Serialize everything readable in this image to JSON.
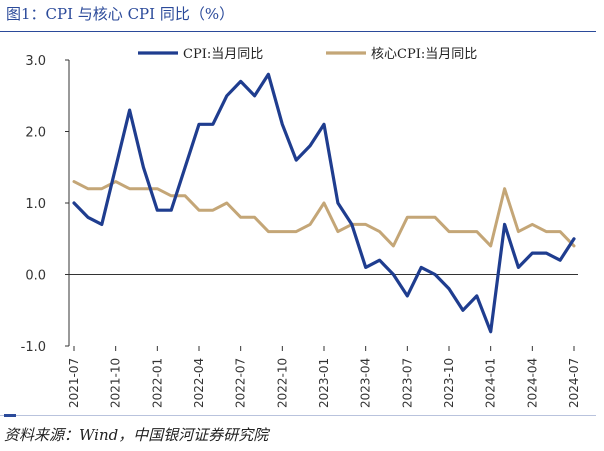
{
  "figure": {
    "title": "图1：CPI 与核心 CPI 同比（%）",
    "source": "资料来源：Wind，中国银河证券研究院"
  },
  "chart_data": {
    "type": "line",
    "title": "CPI 与核心 CPI 同比（%）",
    "xlabel": "",
    "ylabel": "",
    "ylim": [
      -1.0,
      3.0
    ],
    "yticks": [
      "3.0",
      "2.0",
      "1.0",
      "0.0",
      "-1.0"
    ],
    "ytick_values": [
      3.0,
      2.0,
      1.0,
      0.0,
      -1.0
    ],
    "xtick_labels": [
      "2021-07",
      "2021-10",
      "2022-01",
      "2022-04",
      "2022-07",
      "2022-10",
      "2023-01",
      "2023-04",
      "2023-07",
      "2023-10",
      "2024-01",
      "2024-04",
      "2024-07"
    ],
    "xtick_indices": [
      0,
      3,
      6,
      9,
      12,
      15,
      18,
      21,
      24,
      27,
      30,
      33,
      36
    ],
    "x": [
      "2021-07",
      "2021-08",
      "2021-09",
      "2021-10",
      "2021-11",
      "2021-12",
      "2022-01",
      "2022-02",
      "2022-03",
      "2022-04",
      "2022-05",
      "2022-06",
      "2022-07",
      "2022-08",
      "2022-09",
      "2022-10",
      "2022-11",
      "2022-12",
      "2023-01",
      "2023-02",
      "2023-03",
      "2023-04",
      "2023-05",
      "2023-06",
      "2023-07",
      "2023-08",
      "2023-09",
      "2023-10",
      "2023-11",
      "2023-12",
      "2024-01",
      "2024-02",
      "2024-03",
      "2024-04",
      "2024-05",
      "2024-06",
      "2024-07"
    ],
    "series": [
      {
        "name": "CPI:当月同比",
        "color": "#1f3d8f",
        "values": [
          1.0,
          0.8,
          0.7,
          1.5,
          2.3,
          1.5,
          0.9,
          0.9,
          1.5,
          2.1,
          2.1,
          2.5,
          2.7,
          2.5,
          2.8,
          2.1,
          1.6,
          1.8,
          2.1,
          1.0,
          0.7,
          0.1,
          0.2,
          0.0,
          -0.3,
          0.1,
          0.0,
          -0.2,
          -0.5,
          -0.3,
          -0.8,
          0.7,
          0.1,
          0.3,
          0.3,
          0.2,
          0.5
        ]
      },
      {
        "name": "核心CPI:当月同比",
        "color": "#c4a677",
        "values": [
          1.3,
          1.2,
          1.2,
          1.3,
          1.2,
          1.2,
          1.2,
          1.1,
          1.1,
          0.9,
          0.9,
          1.0,
          0.8,
          0.8,
          0.6,
          0.6,
          0.6,
          0.7,
          1.0,
          0.6,
          0.7,
          0.7,
          0.6,
          0.4,
          0.8,
          0.8,
          0.8,
          0.6,
          0.6,
          0.6,
          0.4,
          1.2,
          0.6,
          0.7,
          0.6,
          0.6,
          0.4
        ]
      }
    ],
    "legend": "top-center",
    "grid": false
  }
}
